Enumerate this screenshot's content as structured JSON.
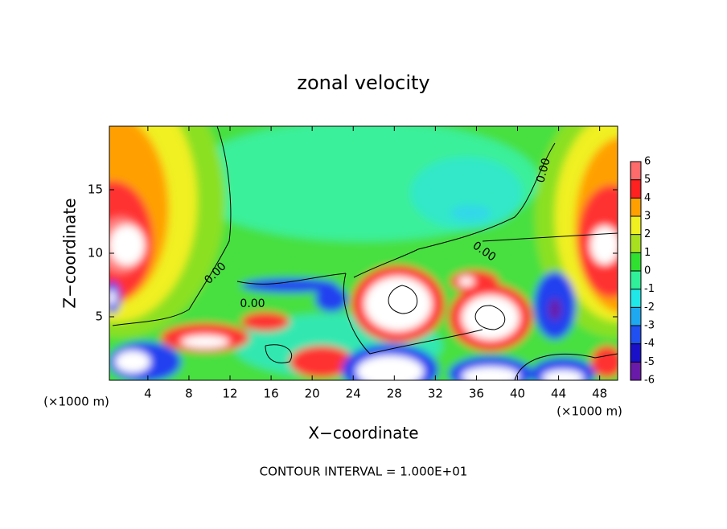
{
  "chart_data": {
    "type": "contour",
    "title": "zonal velocity",
    "xlabel": "X−coordinate",
    "ylabel": "Z−coordinate",
    "x_unit_label": "(×1000 m)",
    "x_unit_label_right": "(×1000 m)",
    "annotation": "CONTOUR INTERVAL = 1.000E+01",
    "contour_labels": [
      "0.00",
      "0.00",
      "0.00",
      "0.00"
    ],
    "xlim": [
      0.25,
      49.75
    ],
    "xticks": [
      4,
      8,
      12,
      16,
      20,
      24,
      28,
      32,
      36,
      40,
      44,
      48
    ],
    "ylim": [
      0,
      20
    ],
    "yticks": [
      5,
      10,
      15
    ],
    "colorbar_levels": [
      -6,
      -5,
      -4,
      -3,
      -2,
      -1,
      0,
      1,
      2,
      3,
      4,
      5,
      6
    ],
    "colorbar_colors": [
      "#6a1aa8",
      "#1a10c8",
      "#2050f0",
      "#1ea8f0",
      "#20e8e8",
      "#30f09a",
      "#30e030",
      "#a8e020",
      "#f0f020",
      "#ffa000",
      "#ff2020",
      "#ff6a6a",
      "#f8a8a8"
    ]
  }
}
